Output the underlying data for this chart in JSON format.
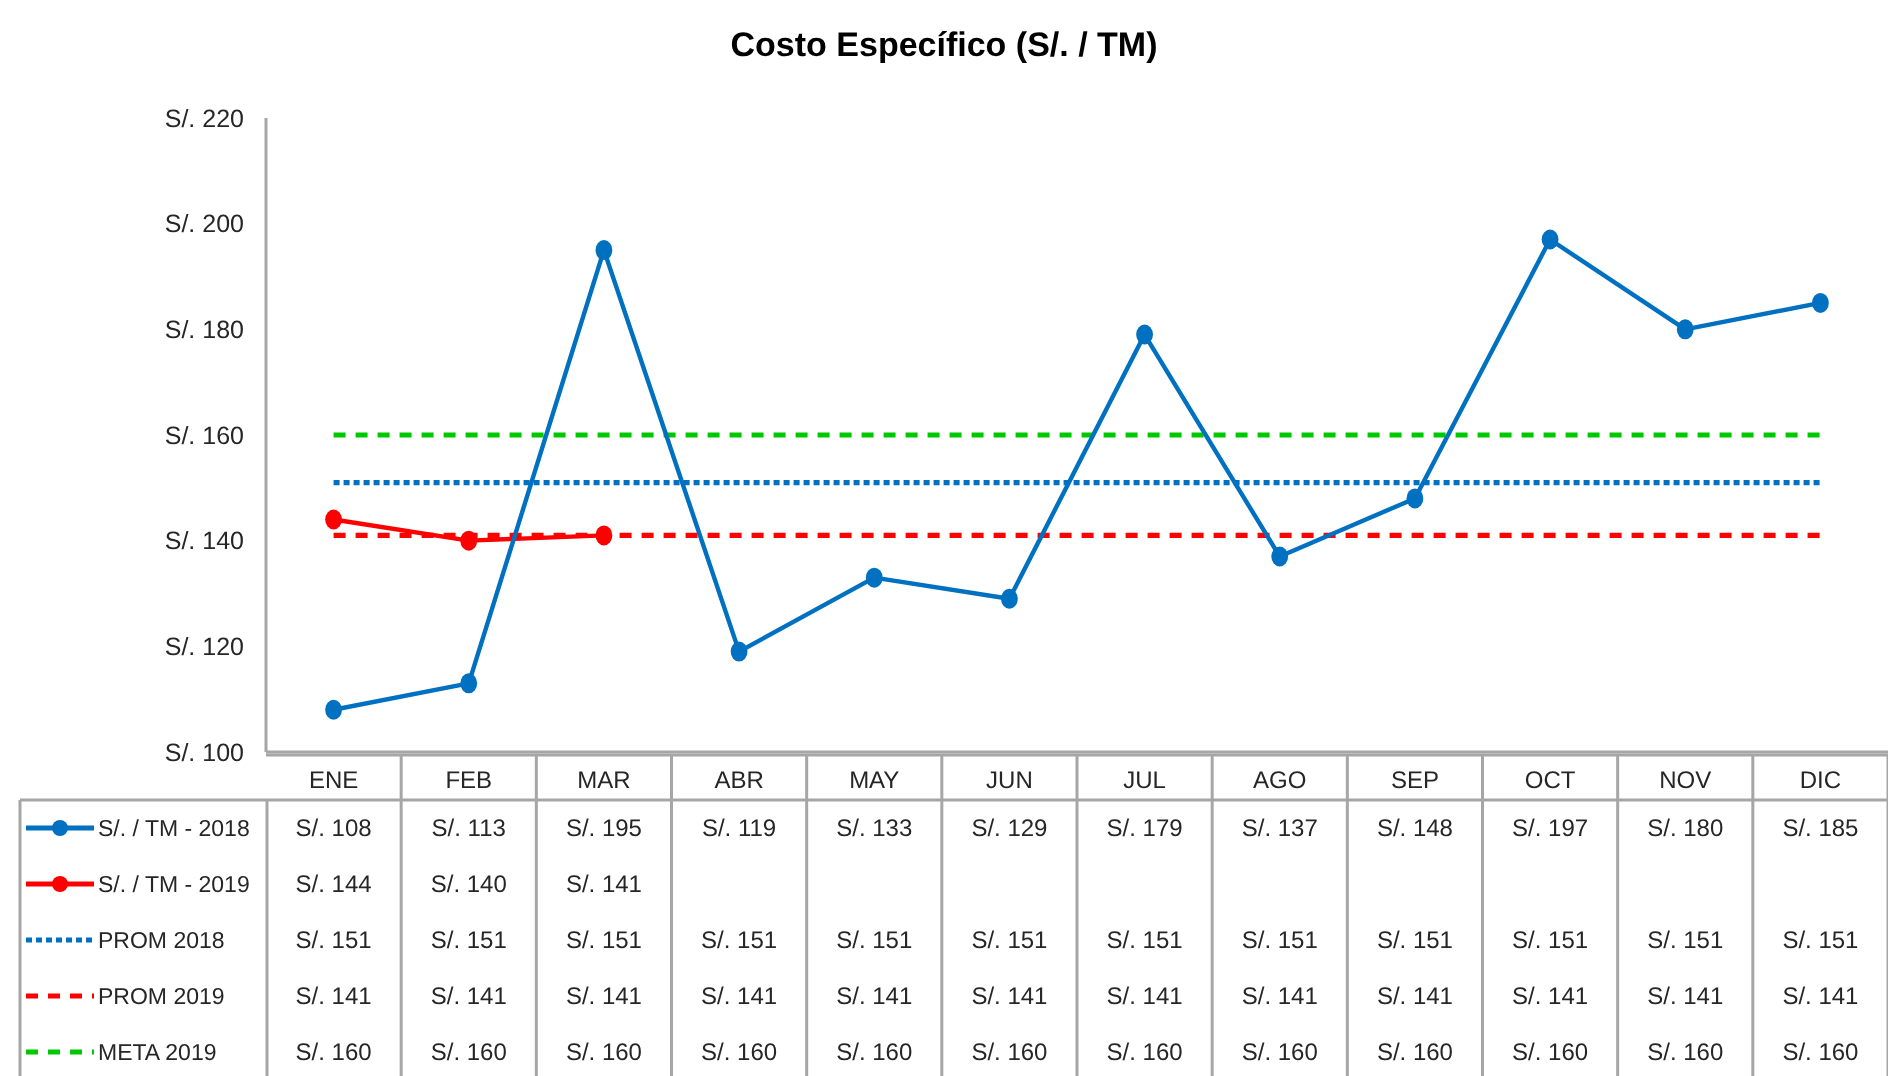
{
  "chart_data": {
    "type": "line",
    "title": "Costo Específico (S/. / TM)",
    "categories": [
      "ENE",
      "FEB",
      "MAR",
      "ABR",
      "MAY",
      "JUN",
      "JUL",
      "AGO",
      "SEP",
      "OCT",
      "NOV",
      "DIC"
    ],
    "series": [
      {
        "name": "S/. / TM - 2018",
        "color": "#0070c0",
        "marker": "circle",
        "line_style": "solid",
        "values": [
          108,
          113,
          195,
          119,
          133,
          129,
          179,
          137,
          148,
          197,
          180,
          185
        ],
        "value_labels": [
          "S/. 108",
          "S/. 113",
          "S/. 195",
          "S/. 119",
          "S/. 133",
          "S/. 129",
          "S/. 179",
          "S/. 137",
          "S/. 148",
          "S/. 197",
          "S/. 180",
          "S/. 185"
        ]
      },
      {
        "name": "S/. / TM - 2019",
        "color": "#ff0000",
        "marker": "circle",
        "line_style": "solid",
        "values": [
          144,
          140,
          141,
          null,
          null,
          null,
          null,
          null,
          null,
          null,
          null,
          null
        ],
        "value_labels": [
          "S/. 144",
          "S/. 140",
          "S/. 141",
          null,
          null,
          null,
          null,
          null,
          null,
          null,
          null,
          null
        ]
      },
      {
        "name": "PROM 2018",
        "color": "#0070c0",
        "marker": "none",
        "line_style": "dotted",
        "values": [
          151,
          151,
          151,
          151,
          151,
          151,
          151,
          151,
          151,
          151,
          151,
          151
        ],
        "value_labels": [
          "S/. 151",
          "S/. 151",
          "S/. 151",
          "S/. 151",
          "S/. 151",
          "S/. 151",
          "S/. 151",
          "S/. 151",
          "S/. 151",
          "S/. 151",
          "S/. 151",
          "S/. 151"
        ]
      },
      {
        "name": "PROM 2019",
        "color": "#ff0000",
        "marker": "none",
        "line_style": "dashed",
        "values": [
          141,
          141,
          141,
          141,
          141,
          141,
          141,
          141,
          141,
          141,
          141,
          141
        ],
        "value_labels": [
          "S/. 141",
          "S/. 141",
          "S/. 141",
          "S/. 141",
          "S/. 141",
          "S/. 141",
          "S/. 141",
          "S/. 141",
          "S/. 141",
          "S/. 141",
          "S/. 141",
          "S/. 141"
        ]
      },
      {
        "name": "META 2019",
        "color": "#00c800",
        "marker": "none",
        "line_style": "dashed",
        "values": [
          160,
          160,
          160,
          160,
          160,
          160,
          160,
          160,
          160,
          160,
          160,
          160
        ],
        "value_labels": [
          "S/. 160",
          "S/. 160",
          "S/. 160",
          "S/. 160",
          "S/. 160",
          "S/. 160",
          "S/. 160",
          "S/. 160",
          "S/. 160",
          "S/. 160",
          "S/. 160",
          "S/. 160"
        ]
      }
    ],
    "ylim": [
      100,
      220
    ],
    "yticks": [
      {
        "value": 100,
        "label": "S/. 100"
      },
      {
        "value": 120,
        "label": "S/. 120"
      },
      {
        "value": 140,
        "label": "S/. 140"
      },
      {
        "value": 160,
        "label": "S/. 160"
      },
      {
        "value": 180,
        "label": "S/. 180"
      },
      {
        "value": 200,
        "label": "S/. 200"
      },
      {
        "value": 220,
        "label": "S/. 220"
      }
    ],
    "legend": "bottom"
  }
}
